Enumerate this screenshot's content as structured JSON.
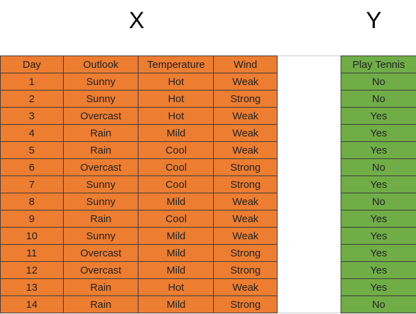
{
  "labels": {
    "x": "X",
    "y": "Y"
  },
  "colors": {
    "features": "#ed7d31",
    "target": "#70ad47",
    "border": "#3a3a3a"
  },
  "features": {
    "headers": [
      "Day",
      "Outlook",
      "Temperature",
      "Wind"
    ],
    "rows": [
      [
        "1",
        "Sunny",
        "Hot",
        "Weak"
      ],
      [
        "2",
        "Sunny",
        "Hot",
        "Strong"
      ],
      [
        "3",
        "Overcast",
        "Hot",
        "Weak"
      ],
      [
        "4",
        "Rain",
        "Mild",
        "Weak"
      ],
      [
        "5",
        "Rain",
        "Cool",
        "Weak"
      ],
      [
        "6",
        "Overcast",
        "Cool",
        "Strong"
      ],
      [
        "7",
        "Sunny",
        "Cool",
        "Strong"
      ],
      [
        "8",
        "Sunny",
        "Mild",
        "Weak"
      ],
      [
        "9",
        "Rain",
        "Cool",
        "Weak"
      ],
      [
        "10",
        "Sunny",
        "Mild",
        "Weak"
      ],
      [
        "11",
        "Overcast",
        "Mild",
        "Strong"
      ],
      [
        "12",
        "Overcast",
        "Mild",
        "Strong"
      ],
      [
        "13",
        "Rain",
        "Hot",
        "Weak"
      ],
      [
        "14",
        "Rain",
        "Mild",
        "Strong"
      ]
    ]
  },
  "target": {
    "header": "Play Tennis",
    "values": [
      "No",
      "No",
      "Yes",
      "Yes",
      "Yes",
      "No",
      "Yes",
      "No",
      "Yes",
      "Yes",
      "Yes",
      "Yes",
      "Yes",
      "No"
    ]
  }
}
